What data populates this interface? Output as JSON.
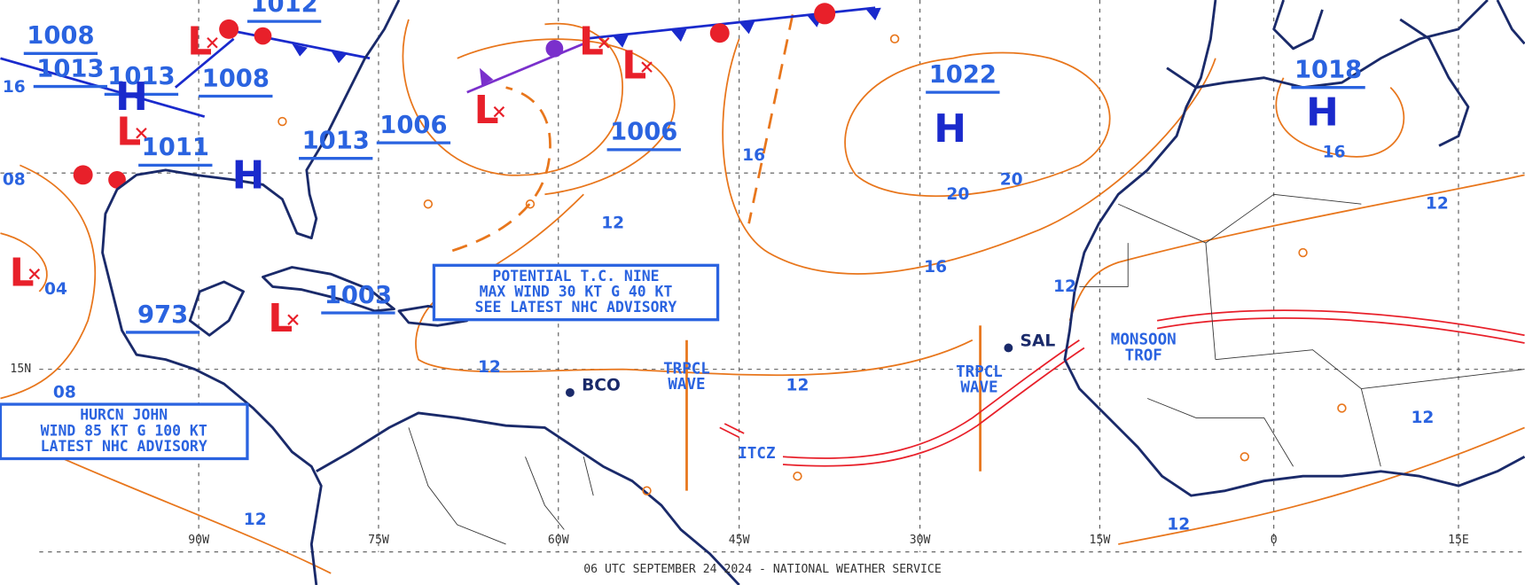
{
  "pressures": [
    "1012",
    "1008",
    "1013",
    "1013",
    "1008",
    "1011",
    "1006",
    "1013",
    "1006",
    "1022",
    "1018",
    "973",
    "1003"
  ],
  "highs": [
    "H",
    "H",
    "H",
    "H"
  ],
  "lows": [
    "L",
    "L",
    "L",
    "L",
    "L",
    "L",
    "L"
  ],
  "isobar_labels": [
    "16",
    "20",
    "20",
    "16",
    "12",
    "12",
    "12",
    "12",
    "12",
    "12",
    "12",
    "12",
    "16",
    "08",
    "04",
    "16",
    "08"
  ],
  "longitudes": [
    "90W",
    "75W",
    "60W",
    "45W",
    "30W",
    "15W",
    "0",
    "15E"
  ],
  "latitudes": [
    "15N"
  ],
  "advisories": [
    {
      "lines": [
        "POTENTIAL T.C. NINE",
        "MAX WIND 30 KT G 40 KT",
        "SEE LATEST NHC ADVISORY"
      ]
    },
    {
      "lines": [
        "HURCN JOHN",
        "WIND 85 KT G 100 KT",
        "LATEST NHC ADVISORY"
      ]
    }
  ],
  "features": [
    "TRPCL WAVE",
    "TRPCL WAVE",
    "ITCZ",
    "MONSOON TROF"
  ],
  "stations": [
    "SAL",
    "BCO"
  ],
  "footer": "06 UTC SEPTEMBER 24 2024 - NATIONAL WEATHER SERVICE"
}
